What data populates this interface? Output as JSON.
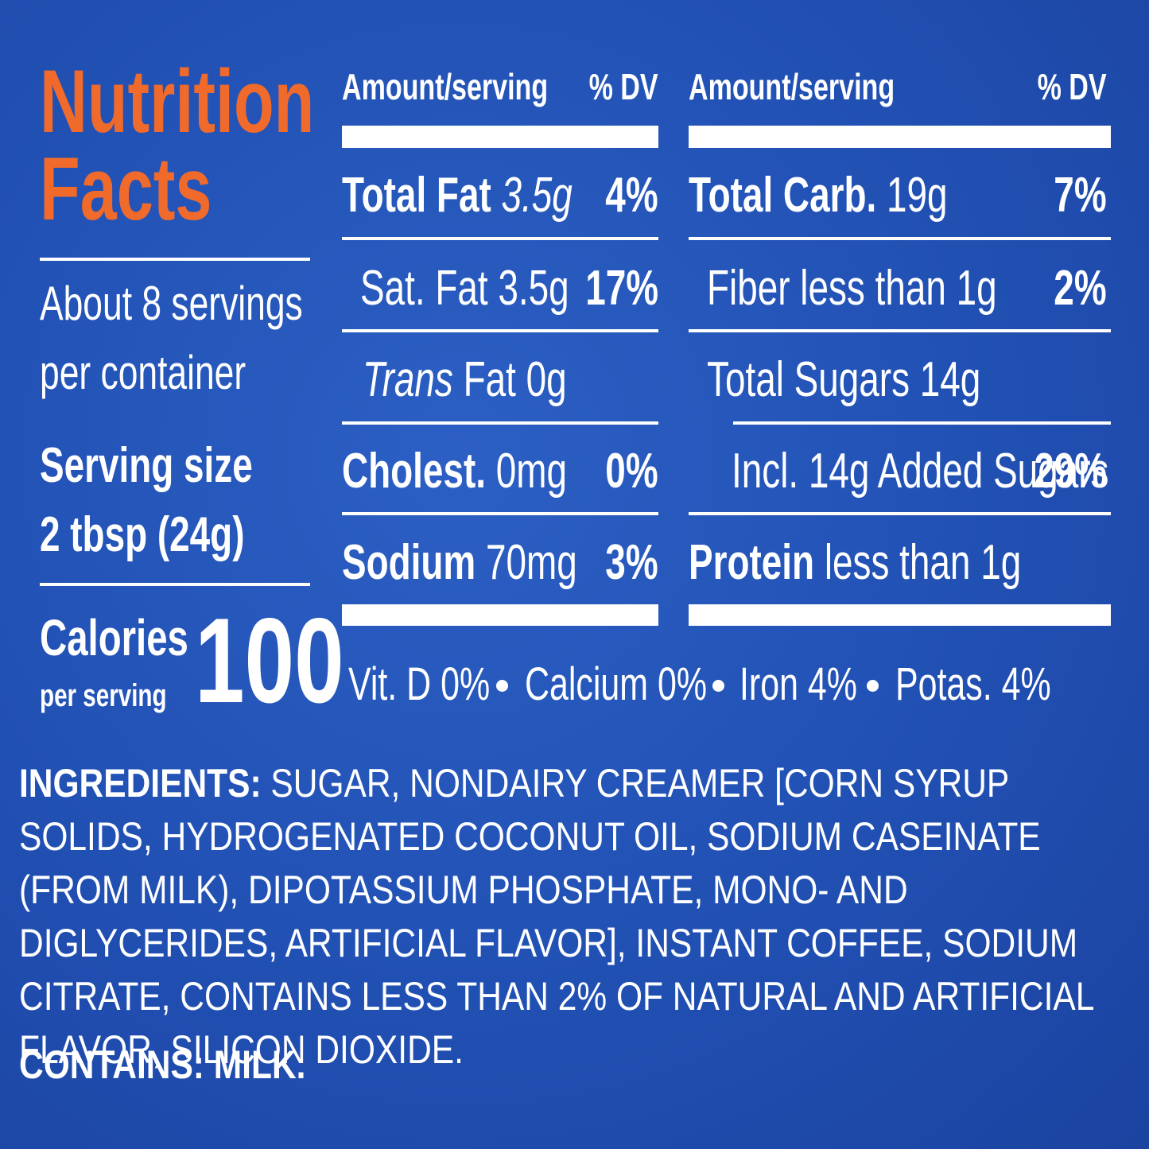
{
  "header": {
    "title_line1": "Nutrition",
    "title_line2": "Facts"
  },
  "servings": {
    "per_container_line1": "About 8 servings",
    "per_container_line2": "per container",
    "serving_size_label": "Serving size",
    "serving_size_value": "2 tbsp (24g)"
  },
  "calories": {
    "label": "Calories",
    "sublabel": "per serving",
    "value": "100"
  },
  "columns": [
    {
      "amount_header": "Amount/serving",
      "dv_header": "% DV",
      "rows": [
        {
          "name": "Total Fat",
          "amount": "3.5g",
          "dv": "4%"
        },
        {
          "name": "Sat. Fat 3.5g",
          "dv": "17%"
        },
        {
          "name_italic": "Trans",
          "name": "Fat 0g"
        },
        {
          "name": "Cholest.",
          "amount": "0mg",
          "dv": "0%"
        },
        {
          "name": "Sodium",
          "amount": "70mg",
          "dv": "3%"
        }
      ]
    },
    {
      "amount_header": "Amount/serving",
      "dv_header": "% DV",
      "rows": [
        {
          "name": "Total Carb.",
          "amount": "19g",
          "dv": "7%"
        },
        {
          "name": "Fiber less than 1g",
          "dv": "2%"
        },
        {
          "name": "Total Sugars 14g"
        },
        {
          "name": "Incl. 14g Added Sugars",
          "dv": "29%"
        },
        {
          "name": "Protein",
          "amount": "less than 1g"
        }
      ]
    }
  ],
  "vitamins": [
    "Vit. D 0%",
    "Calcium 0%",
    "Iron 4%",
    "Potas. 4%"
  ],
  "ingredients": {
    "label": "INGREDIENTS:",
    "text": "SUGAR, NONDAIRY CREAMER [CORN SYRUP SOLIDS, HYDROGENATED COCONUT OIL, SODIUM CASEINATE (FROM MILK), DIPOTASSIUM PHOSPHATE, MONO- AND DIGLYCERIDES, ARTIFICIAL FLAVOR], INSTANT COFFEE, SODIUM CITRATE, CONTAINS LESS THAN 2% OF NATURAL AND ARTIFICIAL FLAVOR, SILICON DIOXIDE."
  },
  "contains": {
    "label": "CONTAINS:",
    "text": "MILK."
  }
}
